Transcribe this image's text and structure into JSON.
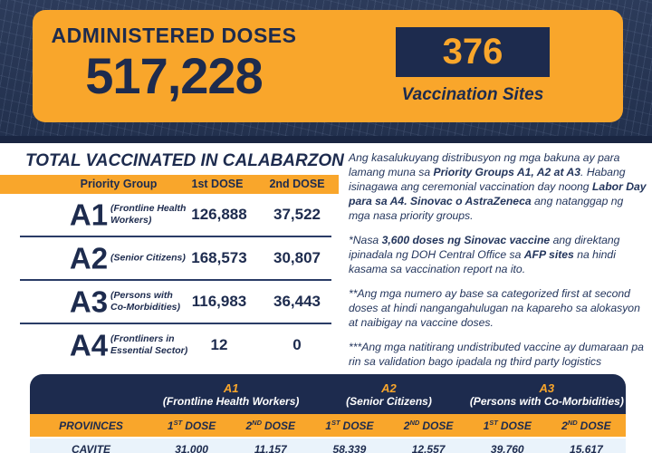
{
  "header": {
    "title": "ADMINISTERED DOSES",
    "total_doses": "517,228",
    "sites_count": "376",
    "sites_label": "Vaccination Sites"
  },
  "colors": {
    "orange": "#F9A62B",
    "navy": "#1D2B4E",
    "light_row": "#EAF3FB"
  },
  "vaccinated": {
    "title": "TOTAL VACCINATED IN CALABARZON",
    "headers": [
      "Priority Group",
      "1st DOSE",
      "2nd DOSE"
    ],
    "rows": [
      {
        "code": "A1",
        "label": "(Frontline Health Workers)",
        "dose1": "126,888",
        "dose2": "37,522"
      },
      {
        "code": "A2",
        "label": "(Senior Citizens)",
        "dose1": "168,573",
        "dose2": "30,807"
      },
      {
        "code": "A3",
        "label": "(Persons with Co-Morbidities)",
        "dose1": "116,983",
        "dose2": "36,443"
      },
      {
        "code": "A4",
        "label": "(Frontliners in Essential Sector)",
        "dose1": "12",
        "dose2": "0"
      }
    ]
  },
  "notes": {
    "paragraphs": [
      [
        {
          "t": "Ang kasalukuyang distribusyon ng mga bakuna ay para lamang muna sa ",
          "b": false
        },
        {
          "t": "Priority Groups A1, A2 at A3",
          "b": true
        },
        {
          "t": ". Habang isinagawa ang ceremonial vaccination day noong ",
          "b": false
        },
        {
          "t": "Labor Day para sa A4. Sinovac o AstraZeneca",
          "b": true
        },
        {
          "t": " ang natanggap ng mga nasa priority groups.",
          "b": false
        }
      ],
      [
        {
          "t": "*Nasa ",
          "b": false
        },
        {
          "t": "3,600 doses ng Sinovac vaccine",
          "b": true
        },
        {
          "t": " ang direktang ipinadala ng DOH Central Office sa ",
          "b": false
        },
        {
          "t": "AFP sites",
          "b": true
        },
        {
          "t": " na hindi kasama sa vaccination report na ito.",
          "b": false
        }
      ],
      [
        {
          "t": "**Ang mga numero ay base sa categorized first at second doses at hindi nangangahulugan na kapareho sa alokasyon at naibigay na vaccine doses.",
          "b": false
        }
      ],
      [
        {
          "t": "***Ang mga natitirang undistributed vaccine ay dumaraan pa rin sa validation bago ipadala ng third party logistics",
          "b": false
        }
      ]
    ]
  },
  "provinces": {
    "col_header": "PROVINCES",
    "groups": [
      {
        "code": "A1",
        "label": "(Frontline Health Workers)"
      },
      {
        "code": "A2",
        "label": "(Senior Citizens)"
      },
      {
        "code": "A3",
        "label": "(Persons with Co-Morbidities)"
      }
    ],
    "dose1": {
      "n": "1",
      "s": "ST",
      "w": "DOSE"
    },
    "dose2": {
      "n": "2",
      "s": "ND",
      "w": "DOSE"
    },
    "rows": [
      {
        "name": "CAVITE",
        "values": [
          "31,000",
          "11,157",
          "58,339",
          "12,557",
          "39,760",
          "15,617"
        ]
      }
    ]
  }
}
